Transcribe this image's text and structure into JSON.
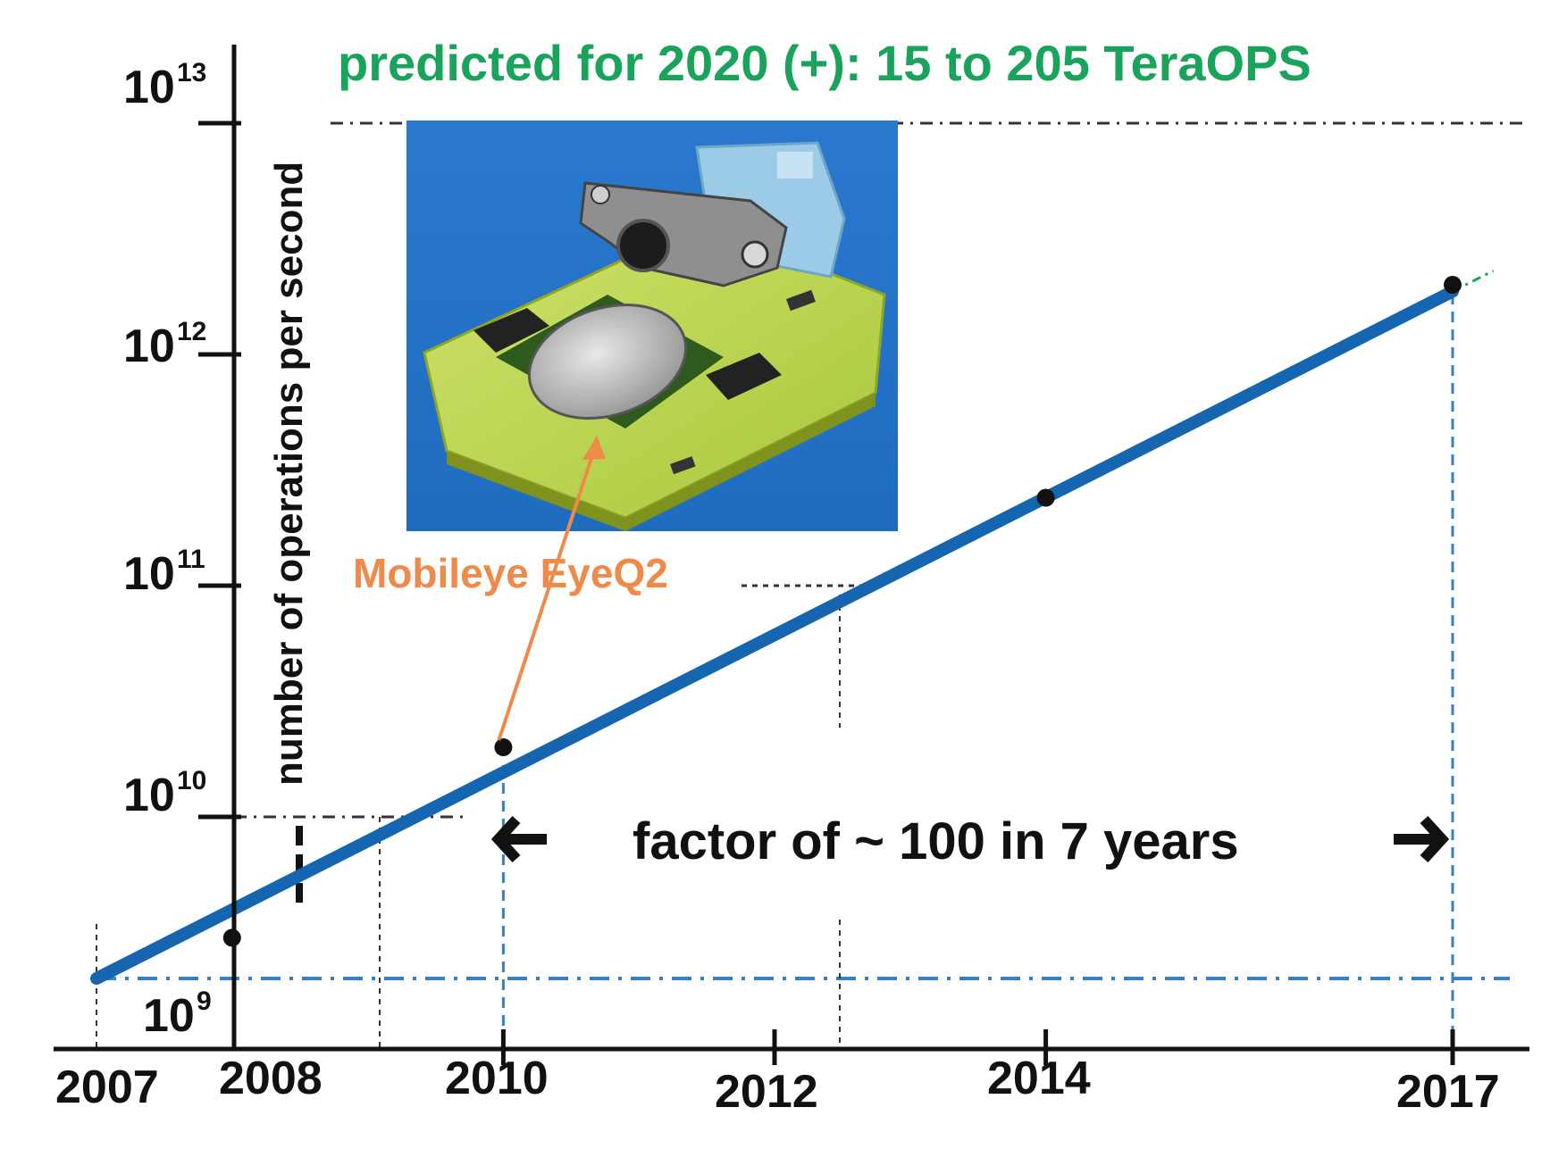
{
  "colors": {
    "title": "#1aa35a",
    "trend_line": "#1565b0",
    "annotation": "#ef8a4a",
    "baseline": "#3a7fbf",
    "axis": "#111111",
    "points": "#111111"
  },
  "title": "predicted for 2020 (+): 15 to 205 TeraOPS",
  "factor_annotation": {
    "text": "factor of ~ 100  in  7  years",
    "from_year": 2010,
    "to_year": 2017
  },
  "chip_callout": {
    "label": "Mobileye  EyeQ2",
    "points_to_year": 2010,
    "image_description_icon": "circuit-board-camera-photo"
  },
  "chart_data": {
    "type": "scatter",
    "title": "predicted for 2020 (+): 15 to 205 TeraOPS",
    "xlabel": "",
    "ylabel": "number of operations per second",
    "y_scale": "log",
    "x_ticks": [
      "2007",
      "2008",
      "2010",
      "2012",
      "2014",
      "2017"
    ],
    "y_ticks": [
      {
        "base": "10",
        "exp": "9"
      },
      {
        "base": "10",
        "exp": "10"
      },
      {
        "base": "10",
        "exp": "11"
      },
      {
        "base": "10",
        "exp": "12"
      },
      {
        "base": "10",
        "exp": "13"
      }
    ],
    "xlim": [
      2007,
      2017.3
    ],
    "ylim_exponent": [
      8.8,
      13.2
    ],
    "points": [
      {
        "x": 2008,
        "y": 3000000000
      },
      {
        "x": 2010,
        "y": 20000000000
      },
      {
        "x": 2014,
        "y": 240000000000
      },
      {
        "x": 2017,
        "y": 2000000000000
      }
    ],
    "trend_line": {
      "x": [
        2007,
        2017.3
      ],
      "y": [
        2000000000,
        2300000000000
      ]
    },
    "reference_level_y": 2000000000,
    "grid": false
  }
}
